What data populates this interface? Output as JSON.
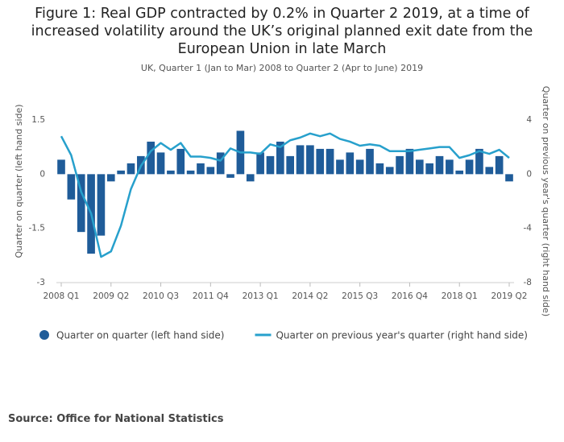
{
  "chart_data": {
    "type": "bar-line",
    "title": "Figure 1: Real GDP contracted by 0.2% in Quarter 2 2019, at a time of increased volatility around the UK’s original planned exit date from the European Union in late March",
    "subtitle": "UK, Quarter 1 (Jan to Mar) 2008 to Quarter 2 (Apr to June) 2019",
    "source": "Source: Office for National Statistics",
    "y_label": "Quarter on quarter (left hand side)",
    "y2_label": "Quarter on previous year's quarter (right hand side)",
    "categories": [
      "2008 Q1",
      null,
      null,
      null,
      null,
      "2009 Q2",
      null,
      null,
      null,
      null,
      "2010 Q3",
      null,
      null,
      null,
      null,
      "2011 Q4",
      null,
      null,
      null,
      null,
      "2013 Q1",
      null,
      null,
      null,
      null,
      "2014 Q2",
      null,
      null,
      null,
      null,
      "2015 Q3",
      null,
      null,
      null,
      null,
      "2016 Q4",
      null,
      null,
      null,
      null,
      "2018 Q1",
      null,
      null,
      null,
      null,
      "2019 Q2"
    ],
    "series": [
      {
        "name": "Quarter on quarter (left hand side)",
        "color": "#1f5c99",
        "kind": "bar",
        "values": [
          0.4,
          -0.7,
          -1.6,
          -2.2,
          -1.7,
          -0.2,
          0.1,
          0.3,
          0.5,
          0.9,
          0.6,
          0.1,
          0.7,
          0.1,
          0.3,
          0.2,
          0.6,
          -0.1,
          1.2,
          -0.2,
          0.6,
          0.5,
          0.9,
          0.5,
          0.8,
          0.8,
          0.7,
          0.7,
          0.4,
          0.6,
          0.4,
          0.7,
          0.3,
          0.2,
          0.5,
          0.7,
          0.4,
          0.3,
          0.5,
          0.4,
          0.1,
          0.4,
          0.7,
          0.2,
          0.5,
          -0.2
        ]
      },
      {
        "name": "Quarter on previous year's quarter (right hand side)",
        "color": "#27a0cc",
        "kind": "line",
        "axis": "y2",
        "values": [
          2.8,
          1.4,
          -1.3,
          -2.9,
          -6.1,
          -5.7,
          -3.8,
          -1.1,
          0.6,
          1.7,
          2.3,
          1.8,
          2.3,
          1.3,
          1.3,
          1.2,
          1.0,
          1.9,
          1.6,
          1.6,
          1.5,
          2.2,
          2.0,
          2.5,
          2.7,
          3.0,
          2.8,
          3.0,
          2.6,
          2.4,
          2.1,
          2.2,
          2.1,
          1.7,
          1.7,
          1.7,
          1.8,
          1.9,
          2.0,
          2.0,
          1.2,
          1.4,
          1.7,
          1.5,
          1.8,
          1.2
        ]
      }
    ],
    "ylim": [
      -3,
      1.5
    ],
    "yticks": [
      -3,
      -1.5,
      0,
      1.5
    ],
    "y2lim": [
      -8,
      4
    ],
    "y2ticks": [
      -8,
      -4,
      0,
      4
    ],
    "grid": false
  }
}
